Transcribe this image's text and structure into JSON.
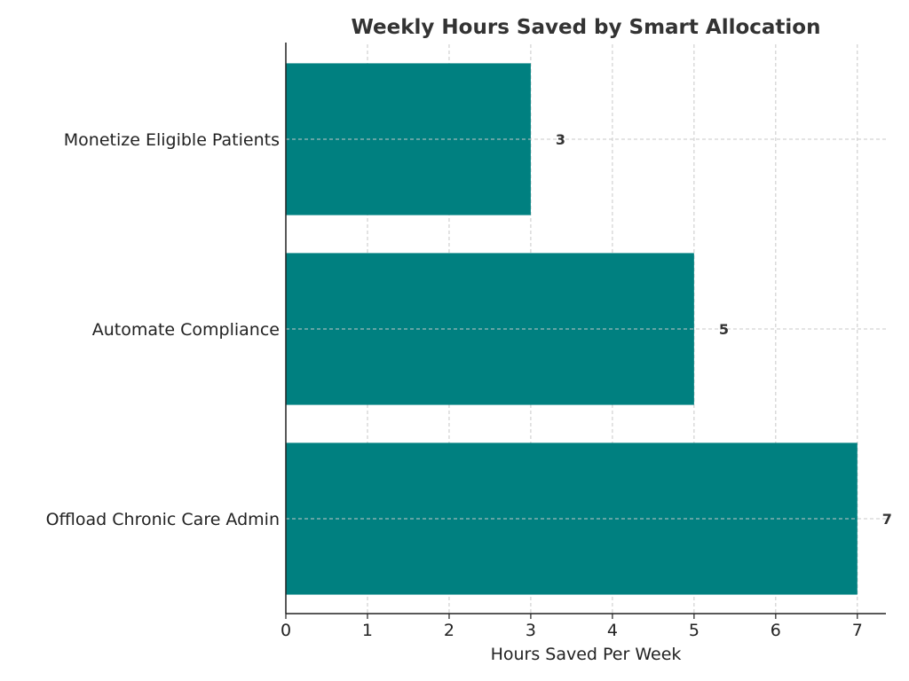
{
  "chart_data": {
    "type": "bar",
    "orientation": "horizontal",
    "title": "Weekly Hours Saved by Smart Allocation",
    "xlabel": "Hours Saved Per Week",
    "ylabel": "",
    "categories": [
      "Offload Chronic Care Admin",
      "Automate Compliance",
      "Monetize Eligible Patients"
    ],
    "values": [
      7,
      5,
      3
    ],
    "data_labels": [
      "7",
      "5",
      "3"
    ],
    "xlim": [
      0,
      7.35
    ],
    "xticks": [
      "0",
      "1",
      "2",
      "3",
      "4",
      "5",
      "6",
      "7"
    ],
    "grid": true,
    "bar_color": "#008080",
    "title_color": "#333333"
  }
}
